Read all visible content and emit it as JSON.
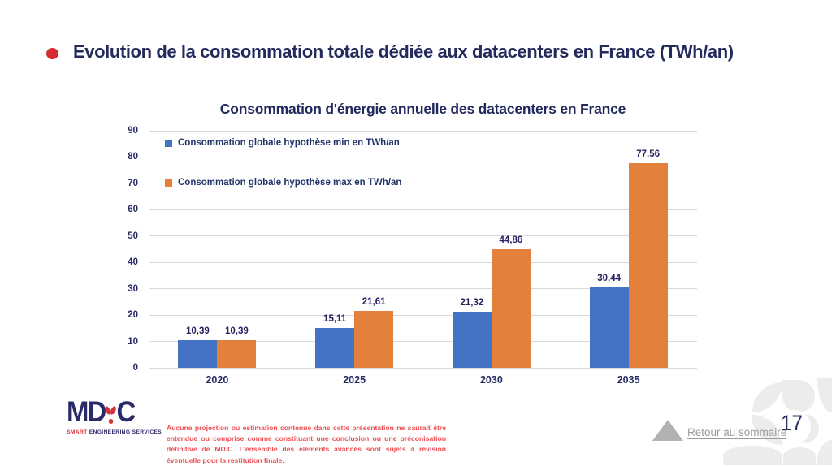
{
  "header": {
    "title": "Evolution de la consommation totale dédiée aux datacenters en France (TWh/an)"
  },
  "chart_data": {
    "type": "bar",
    "title": "Consommation d'énergie annuelle des datacenters en France",
    "categories": [
      "2020",
      "2025",
      "2030",
      "2035"
    ],
    "series": [
      {
        "name": "Consommation globale hypothèse min en TWh/an",
        "color": "#4472C4",
        "values": [
          10.39,
          15.11,
          21.32,
          30.44
        ],
        "labels": [
          "10,39",
          "15,11",
          "21,32",
          "30,44"
        ]
      },
      {
        "name": "Consommation globale hypothèse max en TWh/an",
        "color": "#E2803C",
        "values": [
          10.39,
          21.61,
          44.86,
          77.56
        ],
        "labels": [
          "10,39",
          "21,61",
          "44,86",
          "77,56"
        ]
      }
    ],
    "ylim": [
      0,
      90
    ],
    "yticks": [
      0,
      10,
      20,
      30,
      40,
      50,
      60,
      70,
      80,
      90
    ],
    "grid": true,
    "legend_position": "top-left-inside"
  },
  "footer": {
    "logo": {
      "md": "MD",
      "c": "C",
      "tagline_smart": "SMART",
      "tagline_rest": " ENGINEERING SERVICES"
    },
    "disclaimer": "Aucune projection ou estimation contenue dans cette présentation ne saurait être entendue ou comprise comme constituant une conclusion ou une préconisation définitive de MD.C. L'ensemble des éléments avancés sont sujets à révision éventuelle pour la restitution finale.",
    "back_link": "Retour au sommaire",
    "page_number": "17"
  },
  "colors": {
    "accent_navy": "#232a5c",
    "accent_red": "#d52b31",
    "disclaimer_red": "#f04e53",
    "gridline": "#d9d9d9",
    "link_gray": "#9c9c9c",
    "petal_gray": "#ececec"
  }
}
